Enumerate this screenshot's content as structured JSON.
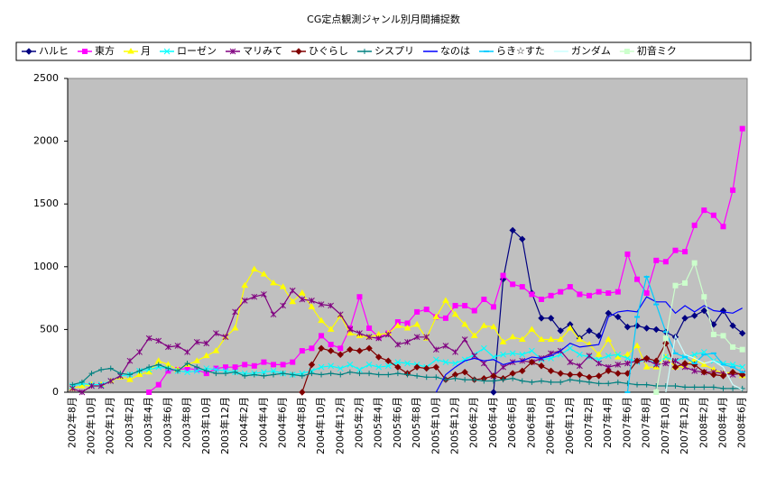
{
  "chart_data": {
    "type": "line",
    "title": "CG定点観測ジャンル別月間捕捉数",
    "categories": [
      "2002年8月",
      null,
      "2002年10月",
      null,
      "2002年12月",
      null,
      "2003年2月",
      null,
      "2003年4月",
      null,
      "2003年6月",
      null,
      "2003年8月",
      null,
      "2003年10月",
      null,
      "2003年12月",
      null,
      "2004年2月",
      null,
      "2004年4月",
      null,
      "2004年6月",
      null,
      "2004年8月",
      null,
      "2004年10月",
      null,
      "2004年12月",
      null,
      "2005年2月",
      null,
      "2005年4月",
      null,
      "2005年6月",
      null,
      "2005年8月",
      null,
      "2005年10月",
      null,
      "2005年12月",
      null,
      "2006年2月",
      null,
      "2006年4月",
      null,
      "2006年6月",
      null,
      "2006年8月",
      null,
      "2006年10月",
      null,
      "2006年12月",
      null,
      "2007年2月",
      null,
      "2007年4月",
      null,
      "2007年6月",
      null,
      "2007年8月",
      null,
      "2007年10月",
      null,
      "2007年12月",
      null,
      "2008年2月",
      null,
      "2008年4月",
      null,
      "2008年6月"
    ],
    "ylim": [
      0,
      2500
    ],
    "yticks": [
      0,
      500,
      1000,
      1500,
      2000,
      2500
    ],
    "grid": false,
    "legend": "top",
    "series": [
      {
        "name": "ハルヒ",
        "color": "#000080",
        "marker": "diamond",
        "values": [
          null,
          null,
          null,
          null,
          null,
          null,
          null,
          null,
          null,
          null,
          null,
          null,
          null,
          null,
          null,
          null,
          null,
          null,
          null,
          null,
          null,
          null,
          null,
          null,
          null,
          null,
          null,
          null,
          null,
          null,
          null,
          null,
          null,
          null,
          null,
          null,
          null,
          null,
          null,
          null,
          null,
          null,
          null,
          null,
          0,
          900,
          1290,
          1220,
          790,
          590,
          590,
          490,
          540,
          430,
          490,
          450,
          630,
          600,
          520,
          530,
          510,
          500,
          480,
          440,
          590,
          610,
          650,
          540,
          650,
          530,
          470
        ]
      },
      {
        "name": "東方",
        "color": "#ff00ff",
        "marker": "square",
        "values": [
          null,
          null,
          null,
          null,
          null,
          null,
          null,
          null,
          0,
          60,
          170,
          180,
          190,
          180,
          150,
          190,
          200,
          200,
          220,
          210,
          240,
          220,
          220,
          240,
          330,
          350,
          450,
          380,
          350,
          510,
          760,
          510,
          440,
          470,
          560,
          550,
          640,
          660,
          600,
          590,
          690,
          690,
          650,
          740,
          680,
          930,
          860,
          840,
          780,
          740,
          770,
          800,
          840,
          780,
          770,
          800,
          790,
          800,
          1100,
          900,
          790,
          1050,
          1040,
          1130,
          1120,
          1330,
          1450,
          1410,
          1320,
          1610,
          2100
        ]
      },
      {
        "name": "月",
        "color": "#ffff00",
        "marker": "triangle",
        "values": [
          30,
          50,
          60,
          60,
          90,
          120,
          100,
          140,
          160,
          250,
          220,
          180,
          220,
          250,
          290,
          330,
          440,
          510,
          850,
          980,
          940,
          870,
          840,
          720,
          790,
          680,
          570,
          500,
          610,
          470,
          450,
          440,
          460,
          470,
          530,
          510,
          540,
          430,
          600,
          730,
          620,
          540,
          450,
          530,
          520,
          400,
          440,
          420,
          500,
          420,
          420,
          420,
          510,
          420,
          380,
          300,
          420,
          280,
          300,
          370,
          200,
          200,
          280,
          200,
          210,
          260,
          220,
          180,
          150,
          160,
          130
        ]
      },
      {
        "name": "ローゼン",
        "color": "#00ffff",
        "marker": "cross",
        "values": [
          50,
          70,
          60,
          60,
          90,
          130,
          140,
          170,
          180,
          200,
          190,
          170,
          160,
          170,
          190,
          180,
          170,
          160,
          150,
          150,
          160,
          170,
          150,
          140,
          150,
          170,
          200,
          210,
          190,
          220,
          180,
          220,
          200,
          210,
          240,
          230,
          220,
          200,
          260,
          240,
          230,
          260,
          300,
          350,
          280,
          300,
          310,
          300,
          330,
          260,
          270,
          300,
          350,
          300,
          280,
          260,
          290,
          300,
          270,
          240,
          260,
          230,
          280,
          250,
          280,
          300,
          320,
          250,
          230,
          220,
          200
        ]
      },
      {
        "name": "マリみて",
        "color": "#800080",
        "marker": "star",
        "values": [
          30,
          0,
          50,
          50,
          90,
          130,
          250,
          320,
          430,
          410,
          360,
          370,
          320,
          400,
          390,
          470,
          440,
          640,
          730,
          760,
          780,
          620,
          690,
          810,
          740,
          730,
          700,
          690,
          620,
          500,
          470,
          440,
          430,
          460,
          380,
          400,
          440,
          440,
          340,
          370,
          320,
          420,
          290,
          230,
          130,
          200,
          240,
          250,
          240,
          270,
          310,
          330,
          240,
          210,
          290,
          230,
          200,
          220,
          230,
          250,
          260,
          220,
          230,
          250,
          200,
          170,
          160,
          160,
          150,
          140,
          150
        ]
      },
      {
        "name": "ひぐらし",
        "color": "#800000",
        "marker": "diamond",
        "values": [
          null,
          null,
          null,
          null,
          null,
          null,
          null,
          null,
          null,
          null,
          null,
          null,
          null,
          null,
          null,
          null,
          null,
          null,
          null,
          null,
          null,
          null,
          null,
          null,
          0,
          220,
          350,
          330,
          300,
          340,
          330,
          350,
          280,
          250,
          200,
          150,
          200,
          190,
          200,
          100,
          140,
          160,
          100,
          110,
          130,
          110,
          150,
          170,
          240,
          210,
          170,
          150,
          140,
          140,
          120,
          130,
          170,
          150,
          150,
          250,
          270,
          250,
          390,
          200,
          230,
          220,
          160,
          140,
          130,
          160,
          140
        ]
      },
      {
        "name": "シスプリ",
        "color": "#008080",
        "marker": "plus",
        "values": [
          60,
          80,
          150,
          180,
          190,
          150,
          140,
          170,
          200,
          220,
          190,
          170,
          230,
          200,
          170,
          150,
          150,
          160,
          130,
          140,
          130,
          140,
          150,
          140,
          130,
          150,
          140,
          150,
          140,
          160,
          150,
          150,
          140,
          140,
          150,
          140,
          130,
          120,
          120,
          100,
          110,
          100,
          100,
          90,
          90,
          100,
          110,
          90,
          80,
          90,
          80,
          80,
          100,
          90,
          80,
          70,
          70,
          80,
          70,
          60,
          60,
          50,
          50,
          50,
          40,
          40,
          40,
          40,
          30,
          30,
          30
        ]
      },
      {
        "name": "なのは",
        "color": "#0000ff",
        "marker": "none",
        "values": [
          null,
          null,
          null,
          null,
          null,
          null,
          null,
          null,
          null,
          null,
          null,
          null,
          null,
          null,
          null,
          null,
          null,
          null,
          null,
          null,
          null,
          null,
          null,
          null,
          null,
          null,
          null,
          null,
          null,
          null,
          null,
          null,
          null,
          null,
          null,
          null,
          null,
          null,
          0,
          140,
          200,
          250,
          270,
          250,
          260,
          220,
          240,
          250,
          280,
          270,
          290,
          330,
          390,
          360,
          370,
          380,
          600,
          640,
          650,
          640,
          760,
          720,
          720,
          630,
          690,
          640,
          690,
          650,
          640,
          630,
          670
        ]
      },
      {
        "name": "らき☆すた",
        "color": "#00ccff",
        "marker": "dash",
        "values": [
          null,
          null,
          null,
          null,
          null,
          null,
          null,
          null,
          null,
          null,
          null,
          null,
          null,
          null,
          null,
          null,
          null,
          null,
          null,
          null,
          null,
          null,
          null,
          null,
          null,
          null,
          null,
          null,
          null,
          null,
          null,
          null,
          null,
          null,
          null,
          null,
          null,
          null,
          null,
          null,
          null,
          null,
          null,
          null,
          null,
          null,
          null,
          null,
          null,
          null,
          null,
          null,
          null,
          null,
          null,
          null,
          null,
          null,
          0,
          600,
          920,
          700,
          480,
          310,
          280,
          230,
          300,
          310,
          220,
          200,
          160
        ]
      },
      {
        "name": "ガンダム",
        "color": "#ccffff",
        "marker": "none",
        "values": [
          null,
          null,
          null,
          null,
          null,
          null,
          null,
          null,
          null,
          null,
          null,
          null,
          null,
          null,
          null,
          null,
          null,
          null,
          null,
          null,
          null,
          null,
          null,
          null,
          null,
          null,
          null,
          null,
          null,
          null,
          null,
          null,
          null,
          null,
          null,
          null,
          null,
          null,
          null,
          null,
          null,
          null,
          null,
          null,
          null,
          null,
          null,
          null,
          null,
          null,
          null,
          null,
          null,
          null,
          null,
          null,
          null,
          null,
          null,
          null,
          null,
          null,
          0,
          450,
          300,
          270,
          230,
          250,
          200,
          60,
          20
        ]
      },
      {
        "name": "初音ミク",
        "color": "#ccffcc",
        "marker": "square",
        "values": [
          null,
          null,
          null,
          null,
          null,
          null,
          null,
          null,
          null,
          null,
          null,
          null,
          null,
          null,
          null,
          null,
          null,
          null,
          null,
          null,
          null,
          null,
          null,
          null,
          null,
          null,
          null,
          null,
          null,
          null,
          null,
          null,
          null,
          null,
          null,
          null,
          null,
          null,
          null,
          null,
          null,
          null,
          null,
          null,
          null,
          null,
          null,
          null,
          null,
          null,
          null,
          null,
          null,
          null,
          null,
          null,
          null,
          null,
          null,
          null,
          null,
          0,
          430,
          850,
          870,
          1030,
          760,
          460,
          450,
          360,
          340
        ]
      }
    ]
  }
}
